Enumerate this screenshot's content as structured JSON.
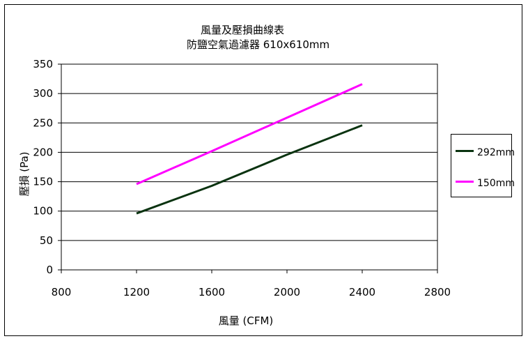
{
  "chart_data": {
    "type": "line",
    "title": "風量及壓損曲線表",
    "subtitle": "防鹽空氣過濾器  610x610mm",
    "xlabel": "風量 (CFM)",
    "ylabel": "壓損 (Pa)",
    "xlim": [
      800,
      2800
    ],
    "ylim": [
      0,
      350
    ],
    "x_ticks": [
      "800",
      "1200",
      "1600",
      "2000",
      "2400",
      "2800"
    ],
    "y_ticks": [
      "0",
      "50",
      "100",
      "150",
      "200",
      "250",
      "300",
      "350"
    ],
    "grid": "horizontal",
    "legend_position": "right",
    "series": [
      {
        "name": "292mm",
        "color": "#0a3310",
        "x": [
          1200,
          1600,
          2000,
          2400
        ],
        "y": [
          96,
          143,
          196,
          246
        ]
      },
      {
        "name": "150mm",
        "color": "#ff00ff",
        "x": [
          1200,
          1600,
          2000,
          2400
        ],
        "y": [
          146,
          202,
          259,
          316
        ]
      }
    ]
  }
}
